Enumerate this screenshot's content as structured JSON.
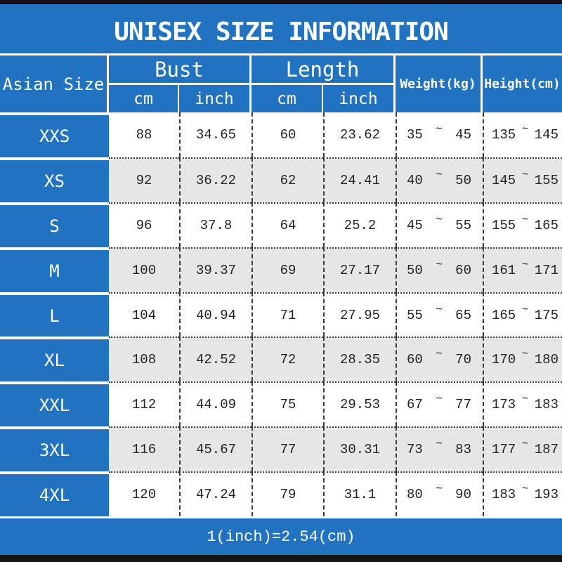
{
  "header": {
    "size_col": "Asian Size",
    "groups": [
      {
        "label": "Bust",
        "units": [
          "cm",
          "inch"
        ]
      },
      {
        "label": "Length",
        "units": [
          "cm",
          "inch"
        ]
      }
    ],
    "weight": "Weight(kg)",
    "height": "Height(cm)"
  },
  "tilde": "~",
  "chart_data": {
    "type": "table",
    "title": "UNISEX SIZE INFORMATION",
    "columns": [
      "Asian Size",
      "Bust cm",
      "Bust inch",
      "Length cm",
      "Length inch",
      "Weight min (kg)",
      "Weight max (kg)",
      "Height min (cm)",
      "Height max (cm)"
    ],
    "rows": [
      [
        "XXS",
        "88",
        "34.65",
        "60",
        "23.62",
        "35",
        "45",
        "135",
        "145"
      ],
      [
        "XS",
        "92",
        "36.22",
        "62",
        "24.41",
        "40",
        "50",
        "145",
        "155"
      ],
      [
        "S",
        "96",
        "37.8",
        "64",
        "25.2",
        "45",
        "55",
        "155",
        "165"
      ],
      [
        "M",
        "100",
        "39.37",
        "69",
        "27.17",
        "50",
        "60",
        "161",
        "171"
      ],
      [
        "L",
        "104",
        "40.94",
        "71",
        "27.95",
        "55",
        "65",
        "165",
        "175"
      ],
      [
        "XL",
        "108",
        "42.52",
        "72",
        "28.35",
        "60",
        "70",
        "170",
        "180"
      ],
      [
        "XXL",
        "112",
        "44.09",
        "75",
        "29.53",
        "67",
        "77",
        "173",
        "183"
      ],
      [
        "3XL",
        "116",
        "45.67",
        "77",
        "30.31",
        "73",
        "83",
        "177",
        "187"
      ],
      [
        "4XL",
        "120",
        "47.24",
        "79",
        "31.1",
        "80",
        "90",
        "183",
        "193"
      ]
    ],
    "note": "1(inch)=2.54(cm)",
    "legend_position": "none",
    "grid": "dashed-columns, dotted-rows"
  },
  "colors": {
    "primary_blue": "#2173c2",
    "row_alt_gray": "#e7e6e6",
    "bar_black": "#101010",
    "text_dark": "#232323",
    "text_light": "#ffffff"
  }
}
